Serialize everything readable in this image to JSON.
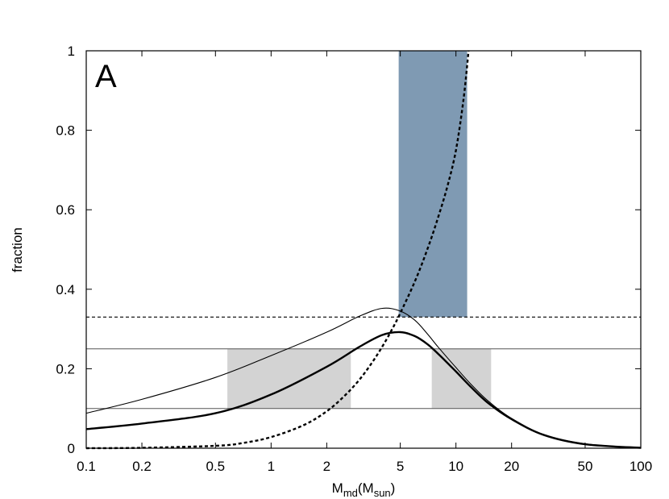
{
  "chart_data": {
    "type": "line",
    "panel_label": "A",
    "xlabel": {
      "main": "M",
      "sub1": "md",
      "mid": "(M",
      "sub2": "sun",
      "end": ")"
    },
    "ylabel": "fraction",
    "xscale": "log",
    "xlim": [
      0.1,
      100
    ],
    "ylim": [
      0,
      1
    ],
    "grid": false,
    "x_ticks": [
      {
        "value": 0.1,
        "label": "0.1"
      },
      {
        "value": 0.2,
        "label": "0.2"
      },
      {
        "value": 0.5,
        "label": "0.5"
      },
      {
        "value": 1,
        "label": "1"
      },
      {
        "value": 2,
        "label": "2"
      },
      {
        "value": 5,
        "label": "5"
      },
      {
        "value": 10,
        "label": "10"
      },
      {
        "value": 20,
        "label": "20"
      },
      {
        "value": 50,
        "label": "50"
      },
      {
        "value": 100,
        "label": "100"
      }
    ],
    "y_ticks": [
      {
        "value": 0,
        "label": "0"
      },
      {
        "value": 0.2,
        "label": "0.2"
      },
      {
        "value": 0.4,
        "label": "0.4"
      },
      {
        "value": 0.6,
        "label": "0.6"
      },
      {
        "value": 0.8,
        "label": "0.8"
      },
      {
        "value": 1,
        "label": "1"
      }
    ],
    "shaded_regions": [
      {
        "x": [
          0.58,
          2.7
        ],
        "y": [
          0.1,
          0.25
        ],
        "color": "#d3d3d3"
      },
      {
        "x": [
          7.4,
          15.5
        ],
        "y": [
          0.1,
          0.25
        ],
        "color": "#d3d3d3"
      },
      {
        "x": [
          4.9,
          11.5
        ],
        "y": [
          0.33,
          1.0
        ],
        "color": "#7f9ab3"
      }
    ],
    "hlines": [
      {
        "y": 0.33,
        "style": "dashed",
        "width": 1.2
      },
      {
        "y": 0.25,
        "style": "solid",
        "width": 1
      },
      {
        "y": 0.1,
        "style": "solid",
        "width": 1
      }
    ],
    "series": [
      {
        "style": "solid-thin",
        "color": "#000000",
        "x": [
          0.1,
          0.2,
          0.5,
          1,
          2,
          3,
          4,
          5,
          6,
          7,
          8,
          10,
          12,
          15,
          20,
          30,
          50,
          100
        ],
        "y": [
          0.088,
          0.123,
          0.178,
          0.233,
          0.292,
          0.332,
          0.352,
          0.345,
          0.322,
          0.288,
          0.255,
          0.203,
          0.162,
          0.118,
          0.075,
          0.034,
          0.011,
          0.001
        ]
      },
      {
        "style": "solid-thick",
        "color": "#000000",
        "x": [
          0.1,
          0.2,
          0.5,
          1,
          2,
          3,
          4,
          5,
          6,
          7,
          8,
          10,
          12,
          15,
          20,
          30,
          50,
          100
        ],
        "y": [
          0.048,
          0.062,
          0.088,
          0.135,
          0.205,
          0.255,
          0.285,
          0.292,
          0.282,
          0.262,
          0.238,
          0.193,
          0.155,
          0.113,
          0.073,
          0.033,
          0.01,
          0.001
        ]
      },
      {
        "style": "dashed-thick",
        "color": "#000000",
        "x": [
          0.1,
          0.2,
          0.5,
          0.7,
          1,
          1.5,
          2,
          2.5,
          3,
          3.5,
          4,
          4.5,
          5,
          6,
          7,
          8,
          9,
          10,
          11,
          11.7
        ],
        "y": [
          0.0,
          0.001,
          0.006,
          0.013,
          0.028,
          0.058,
          0.093,
          0.132,
          0.172,
          0.214,
          0.256,
          0.298,
          0.34,
          0.42,
          0.5,
          0.58,
          0.66,
          0.75,
          0.88,
          1.0
        ]
      }
    ]
  }
}
